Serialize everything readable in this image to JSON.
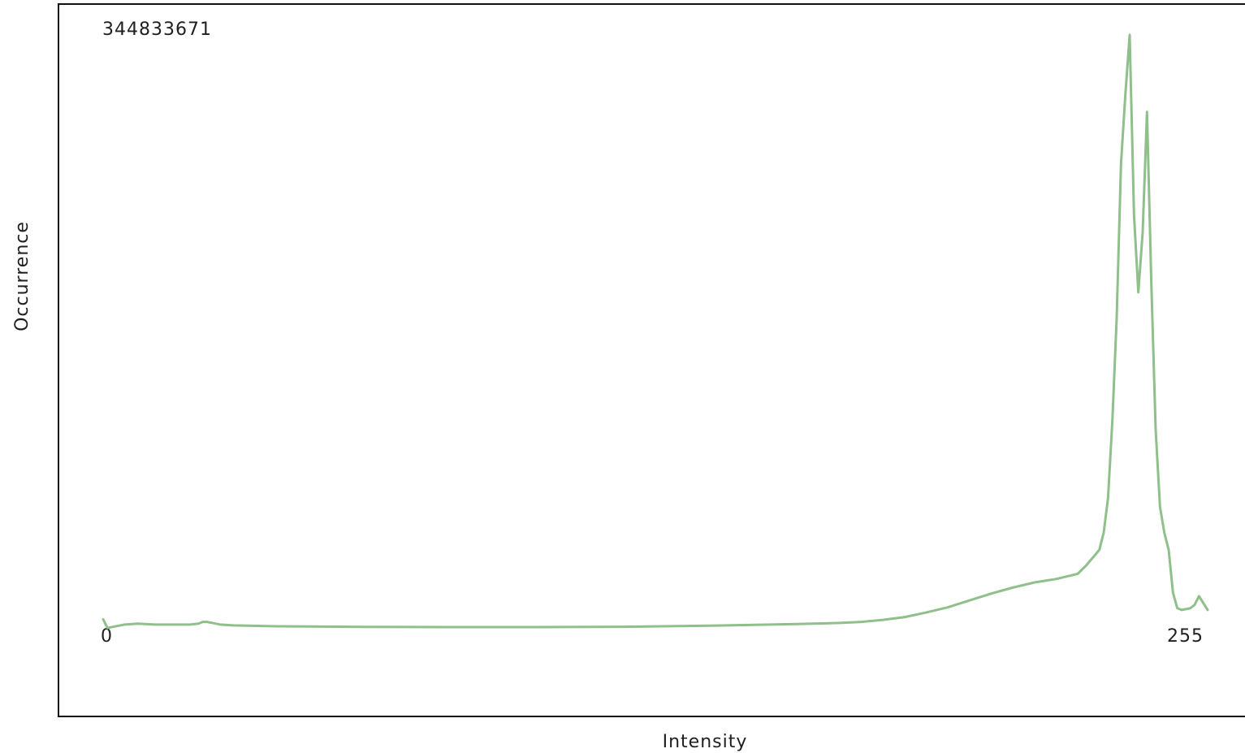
{
  "chart_data": {
    "type": "line",
    "title": "",
    "xlabel": "Intensity",
    "ylabel": "Occurrence",
    "xlim": [
      0,
      255
    ],
    "ylim": [
      0,
      344833671
    ],
    "max_label": "344833671",
    "x_min_label": "0",
    "x_max_label": "255",
    "grid": false,
    "line_color": "#8fbf8a",
    "points": [
      [
        0,
        4500000
      ],
      [
        1,
        -500000
      ],
      [
        3,
        500000
      ],
      [
        5,
        1500000
      ],
      [
        8,
        2000000
      ],
      [
        12,
        1500000
      ],
      [
        16,
        1500000
      ],
      [
        20,
        1500000
      ],
      [
        22,
        2000000
      ],
      [
        23,
        3000000
      ],
      [
        24,
        3000000
      ],
      [
        25,
        2500000
      ],
      [
        27,
        1500000
      ],
      [
        30,
        1000000
      ],
      [
        40,
        500000
      ],
      [
        60,
        100000
      ],
      [
        80,
        0
      ],
      [
        100,
        0
      ],
      [
        120,
        200000
      ],
      [
        140,
        800000
      ],
      [
        160,
        1800000
      ],
      [
        170,
        2400000
      ],
      [
        175,
        3000000
      ],
      [
        180,
        4200000
      ],
      [
        185,
        5800000
      ],
      [
        190,
        8500000
      ],
      [
        195,
        11500000
      ],
      [
        200,
        15500000
      ],
      [
        205,
        19500000
      ],
      [
        210,
        23000000
      ],
      [
        215,
        26000000
      ],
      [
        220,
        28000000
      ],
      [
        225,
        31000000
      ],
      [
        227,
        36000000
      ],
      [
        230,
        45000000
      ],
      [
        231,
        55000000
      ],
      [
        232,
        75000000
      ],
      [
        233,
        120000000
      ],
      [
        234,
        180000000
      ],
      [
        235,
        270000000
      ],
      [
        236,
        310000000
      ],
      [
        237,
        344833671
      ],
      [
        238,
        240000000
      ],
      [
        239,
        195000000
      ],
      [
        240,
        230000000
      ],
      [
        241,
        300000000
      ],
      [
        242,
        200000000
      ],
      [
        243,
        115000000
      ],
      [
        244,
        70000000
      ],
      [
        245,
        55000000
      ],
      [
        246,
        45000000
      ],
      [
        247,
        20000000
      ],
      [
        248,
        11000000
      ],
      [
        249,
        10000000
      ],
      [
        251,
        11000000
      ],
      [
        252,
        13000000
      ],
      [
        253,
        18000000
      ],
      [
        255,
        10000000
      ]
    ]
  }
}
